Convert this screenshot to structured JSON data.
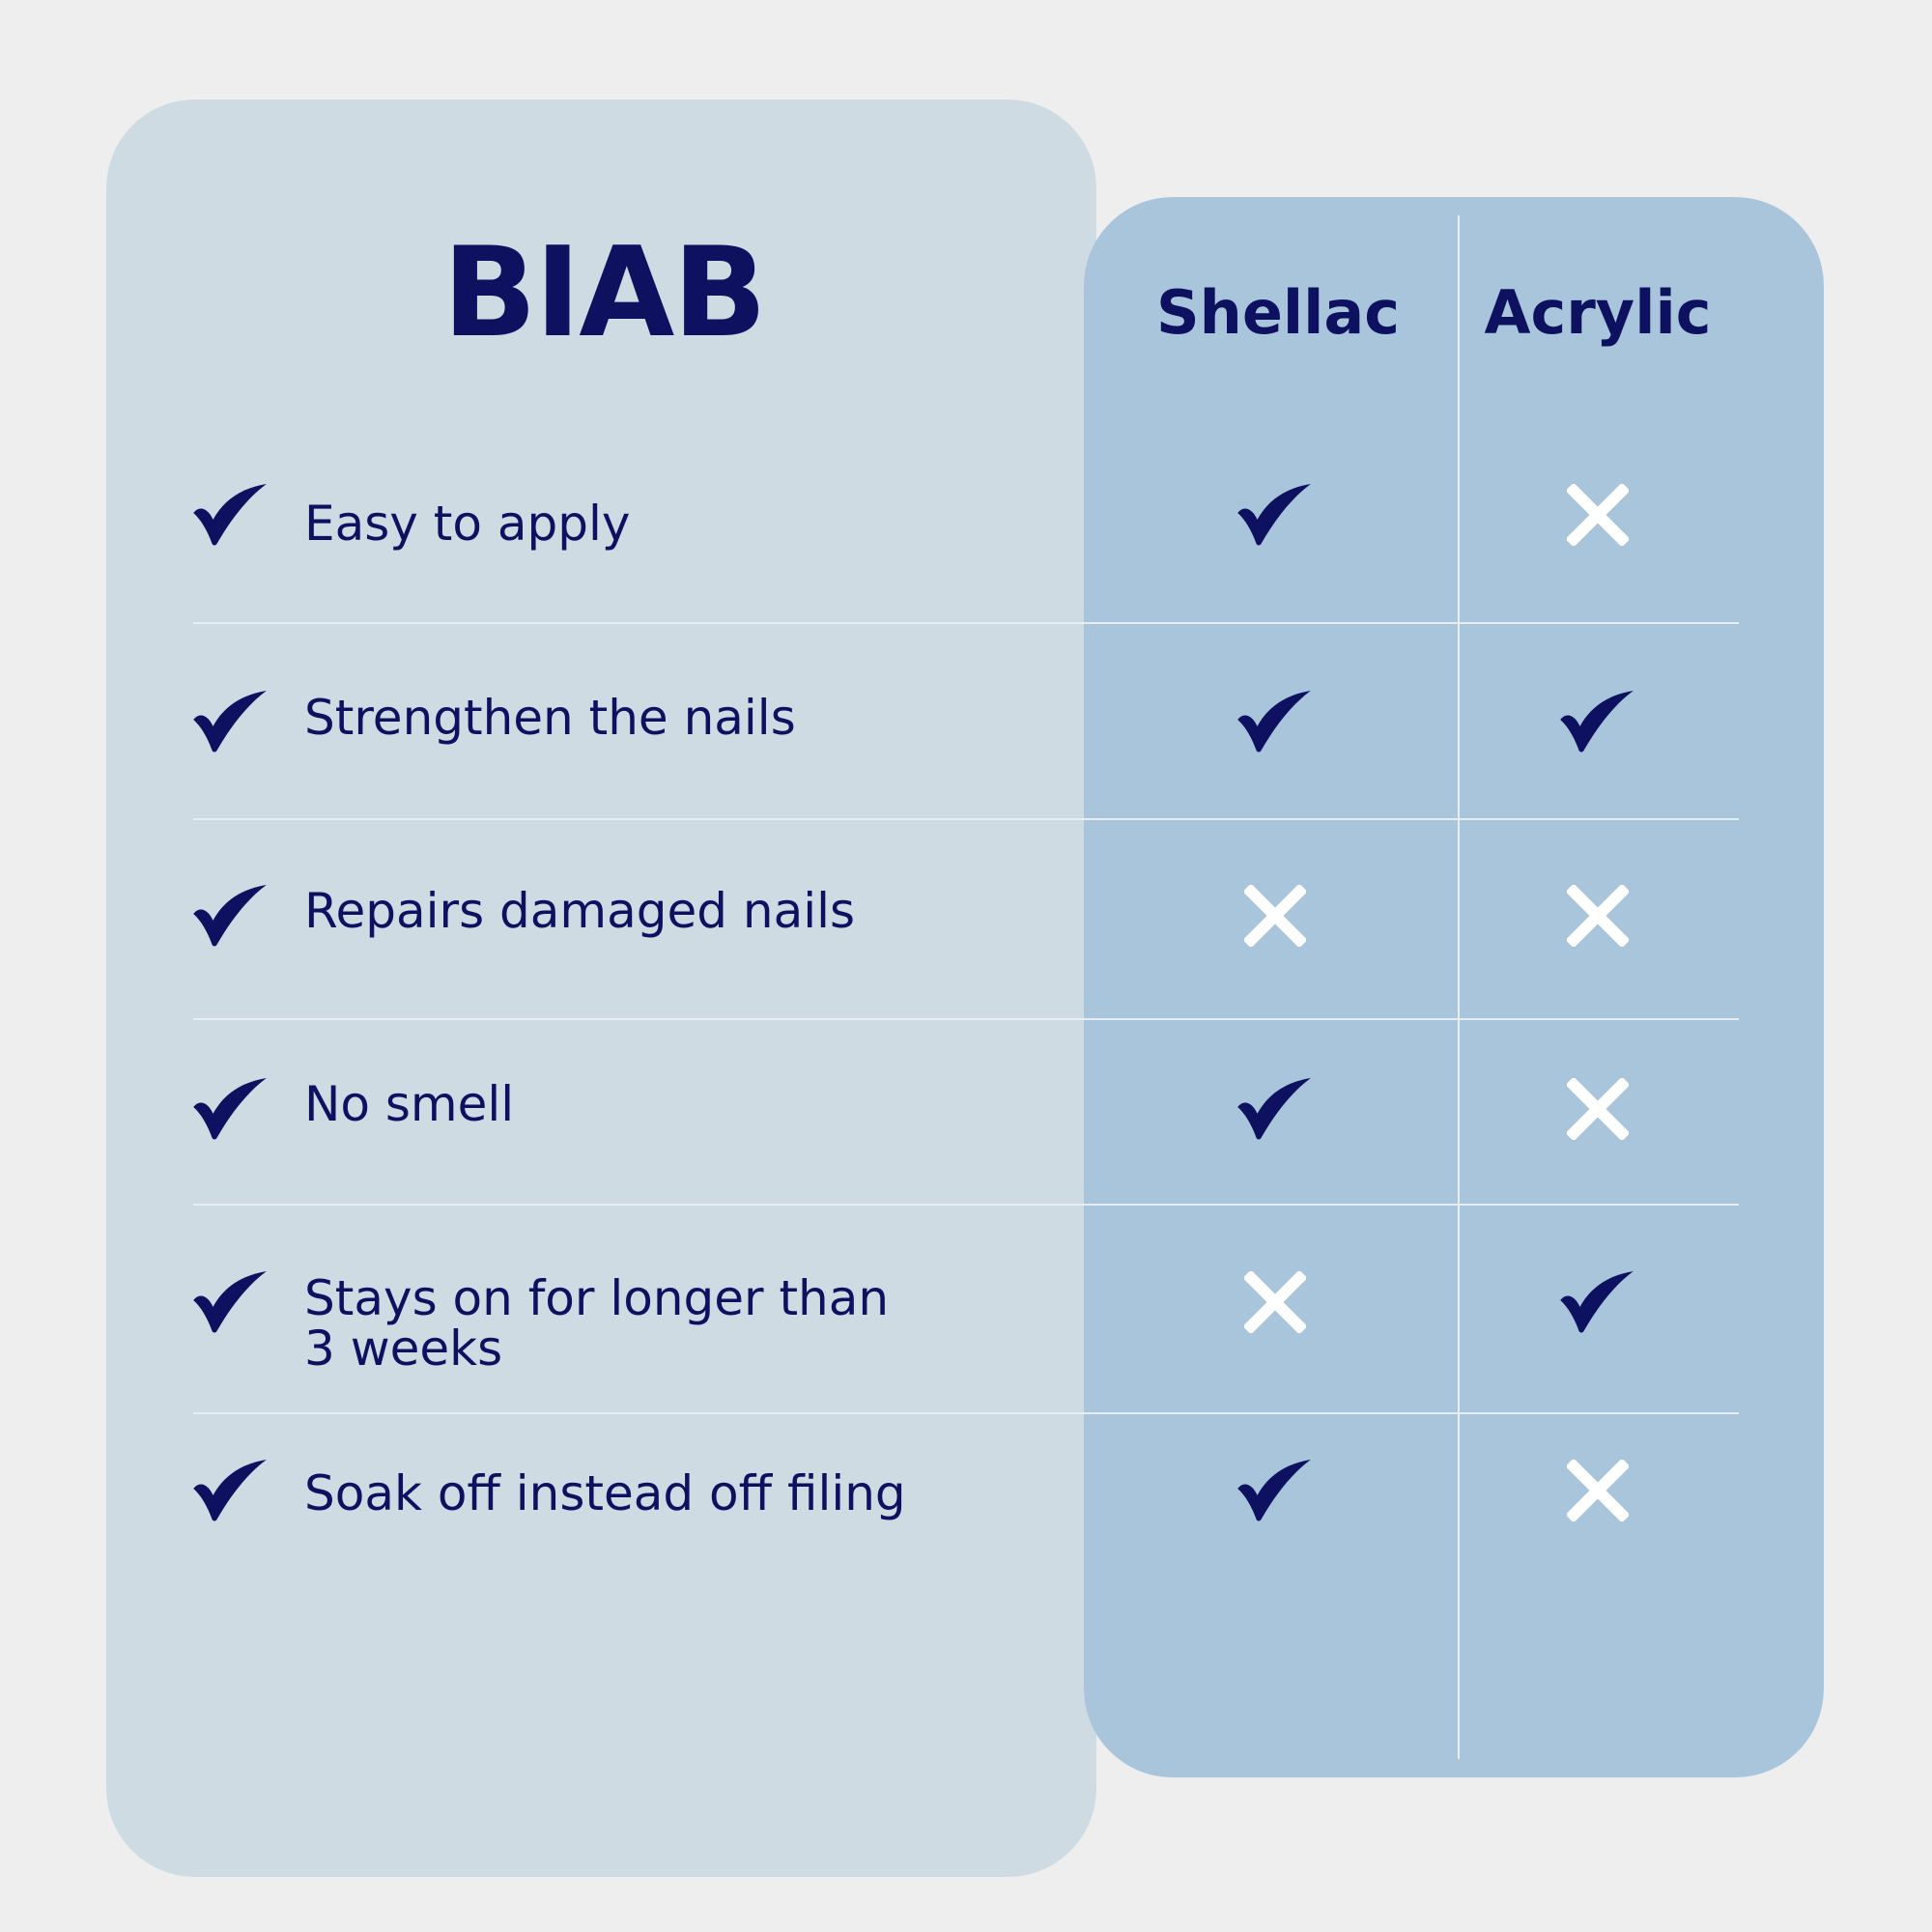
{
  "title": "BIAB",
  "columns": [
    "Shellac",
    "Acrylic"
  ],
  "colors": {
    "background": "#eeeeee",
    "biab_card": "#cfdbe3",
    "others_card": "#a9c5db",
    "navy": "#0d1160",
    "cross": "#ffffff"
  },
  "rows": [
    {
      "feature": "Easy to apply",
      "biab": true,
      "shellac": true,
      "acrylic": false
    },
    {
      "feature": "Strengthen the nails",
      "biab": true,
      "shellac": true,
      "acrylic": true
    },
    {
      "feature": "Repairs damaged nails",
      "biab": true,
      "shellac": false,
      "acrylic": false
    },
    {
      "feature": "No smell",
      "biab": true,
      "shellac": true,
      "acrylic": false
    },
    {
      "feature": "Stays on for longer than 3 weeks",
      "feature_lines": [
        "Stays on for longer than",
        "3 weeks"
      ],
      "biab": true,
      "shellac": false,
      "acrylic": true
    },
    {
      "feature": "Soak off instead off filing",
      "biab": true,
      "shellac": true,
      "acrylic": false
    }
  ]
}
